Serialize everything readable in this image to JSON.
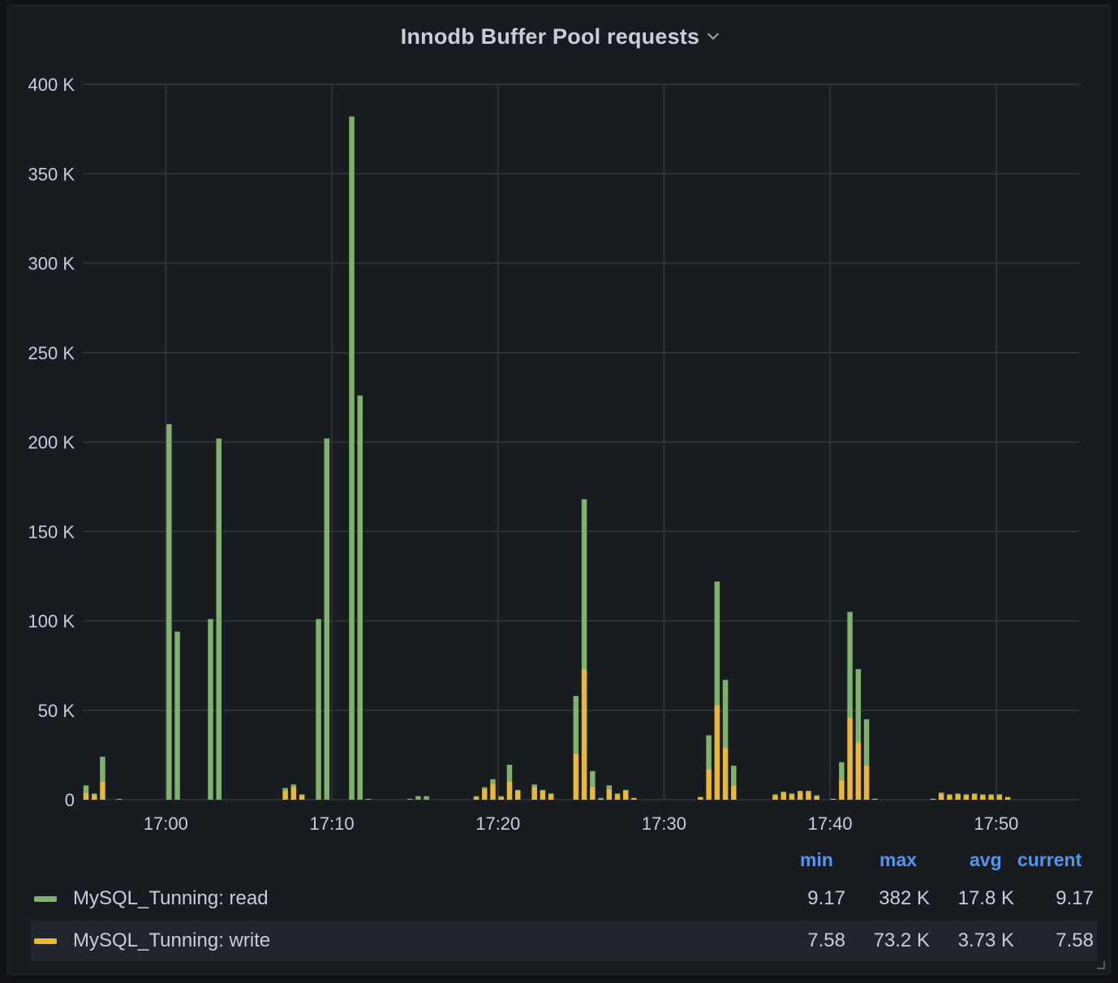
{
  "panel": {
    "title": "Innodb Buffer Pool requests"
  },
  "legend": {
    "headers": {
      "min": "min",
      "max": "max",
      "avg": "avg",
      "current": "current"
    },
    "rows": [
      {
        "label": "MySQL_Tunning: read",
        "color": "#7eb26d",
        "min": "9.17",
        "max": "382 K",
        "avg": "17.8 K",
        "current": "9.17"
      },
      {
        "label": "MySQL_Tunning: write",
        "color": "#eab839",
        "min": "7.58",
        "max": "73.2 K",
        "avg": "3.73 K",
        "current": "7.58"
      }
    ]
  },
  "chart_data": {
    "type": "bar",
    "stacked": true,
    "x_unit": "minutes since 16:55 (time of day)",
    "x_ticks": [
      "17:00",
      "17:10",
      "17:20",
      "17:30",
      "17:40",
      "17:50"
    ],
    "y_ticks": [
      "0",
      "50 K",
      "100 K",
      "150 K",
      "200 K",
      "250 K",
      "300 K",
      "350 K",
      "400 K"
    ],
    "ylim": [
      0,
      400000
    ],
    "grid": true,
    "series": [
      {
        "name": "MySQL_Tunning: write",
        "color": "#eab839",
        "points": [
          [
            0.0,
            4000
          ],
          [
            0.5,
            2500
          ],
          [
            1.0,
            10000
          ],
          [
            2.0,
            0
          ],
          [
            5.0,
            0
          ],
          [
            7.5,
            0
          ],
          [
            8.0,
            0
          ],
          [
            12.0,
            5000
          ],
          [
            12.5,
            7000
          ],
          [
            13.0,
            2500
          ],
          [
            14.0,
            0
          ],
          [
            14.5,
            0
          ],
          [
            16.0,
            0
          ],
          [
            16.5,
            0
          ],
          [
            17.0,
            0
          ],
          [
            19.5,
            0
          ],
          [
            20.0,
            0
          ],
          [
            20.5,
            0
          ],
          [
            23.5,
            1500
          ],
          [
            24.0,
            6000
          ],
          [
            24.5,
            9000
          ],
          [
            25.0,
            1500
          ],
          [
            25.5,
            10000
          ],
          [
            26.0,
            5000
          ],
          [
            27.0,
            7000
          ],
          [
            27.5,
            5000
          ],
          [
            28.0,
            3000
          ],
          [
            29.5,
            26000
          ],
          [
            30.0,
            73000
          ],
          [
            30.5,
            7000
          ],
          [
            31.0,
            500
          ],
          [
            31.5,
            6000
          ],
          [
            32.0,
            3000
          ],
          [
            32.5,
            5000
          ],
          [
            33.0,
            1000
          ],
          [
            37.0,
            1500
          ],
          [
            37.5,
            17000
          ],
          [
            38.0,
            53000
          ],
          [
            38.5,
            29000
          ],
          [
            39.0,
            8000
          ],
          [
            41.5,
            2500
          ],
          [
            42.0,
            4000
          ],
          [
            42.5,
            3000
          ],
          [
            43.0,
            4500
          ],
          [
            43.5,
            4500
          ],
          [
            44.0,
            2000
          ],
          [
            45.0,
            500
          ],
          [
            45.5,
            11000
          ],
          [
            46.0,
            46000
          ],
          [
            46.5,
            32000
          ],
          [
            47.0,
            19000
          ],
          [
            47.5,
            500
          ],
          [
            51.0,
            500
          ],
          [
            51.5,
            3500
          ],
          [
            52.0,
            2500
          ],
          [
            52.5,
            3000
          ],
          [
            53.0,
            2500
          ],
          [
            53.5,
            3000
          ],
          [
            54.0,
            2500
          ],
          [
            54.5,
            2500
          ],
          [
            55.0,
            2500
          ],
          [
            55.5,
            1500
          ]
        ]
      },
      {
        "name": "MySQL_Tunning: read",
        "color": "#7eb26d",
        "points": [
          [
            0.0,
            4000
          ],
          [
            0.5,
            1000
          ],
          [
            1.0,
            14000
          ],
          [
            2.0,
            500
          ],
          [
            5.0,
            210000
          ],
          [
            5.5,
            94000
          ],
          [
            7.5,
            101000
          ],
          [
            8.0,
            202000
          ],
          [
            12.0,
            1500
          ],
          [
            12.5,
            1500
          ],
          [
            13.0,
            500
          ],
          [
            14.0,
            101000
          ],
          [
            14.5,
            202000
          ],
          [
            16.0,
            382000
          ],
          [
            16.5,
            226000
          ],
          [
            17.0,
            500
          ],
          [
            19.5,
            500
          ],
          [
            20.0,
            2000
          ],
          [
            20.5,
            2000
          ],
          [
            23.5,
            500
          ],
          [
            24.0,
            1000
          ],
          [
            24.5,
            2500
          ],
          [
            25.0,
            500
          ],
          [
            25.5,
            9500
          ],
          [
            26.0,
            500
          ],
          [
            27.0,
            1500
          ],
          [
            27.5,
            500
          ],
          [
            28.0,
            500
          ],
          [
            29.5,
            32000
          ],
          [
            30.0,
            95000
          ],
          [
            30.5,
            9000
          ],
          [
            31.0,
            500
          ],
          [
            31.5,
            2000
          ],
          [
            32.0,
            500
          ],
          [
            32.5,
            500
          ],
          [
            33.0,
            0
          ],
          [
            37.0,
            0
          ],
          [
            37.5,
            19000
          ],
          [
            38.0,
            69000
          ],
          [
            38.5,
            38000
          ],
          [
            39.0,
            11000
          ],
          [
            41.5,
            500
          ],
          [
            42.0,
            500
          ],
          [
            42.5,
            500
          ],
          [
            43.0,
            500
          ],
          [
            43.5,
            500
          ],
          [
            44.0,
            500
          ],
          [
            45.0,
            0
          ],
          [
            45.5,
            10000
          ],
          [
            46.0,
            59000
          ],
          [
            46.5,
            41000
          ],
          [
            47.0,
            26000
          ],
          [
            47.5,
            0
          ],
          [
            51.0,
            0
          ],
          [
            51.5,
            500
          ],
          [
            52.0,
            500
          ],
          [
            52.5,
            500
          ],
          [
            53.0,
            500
          ],
          [
            53.5,
            500
          ],
          [
            54.0,
            500
          ],
          [
            54.5,
            500
          ],
          [
            55.0,
            500
          ],
          [
            55.5,
            0
          ]
        ]
      }
    ]
  }
}
